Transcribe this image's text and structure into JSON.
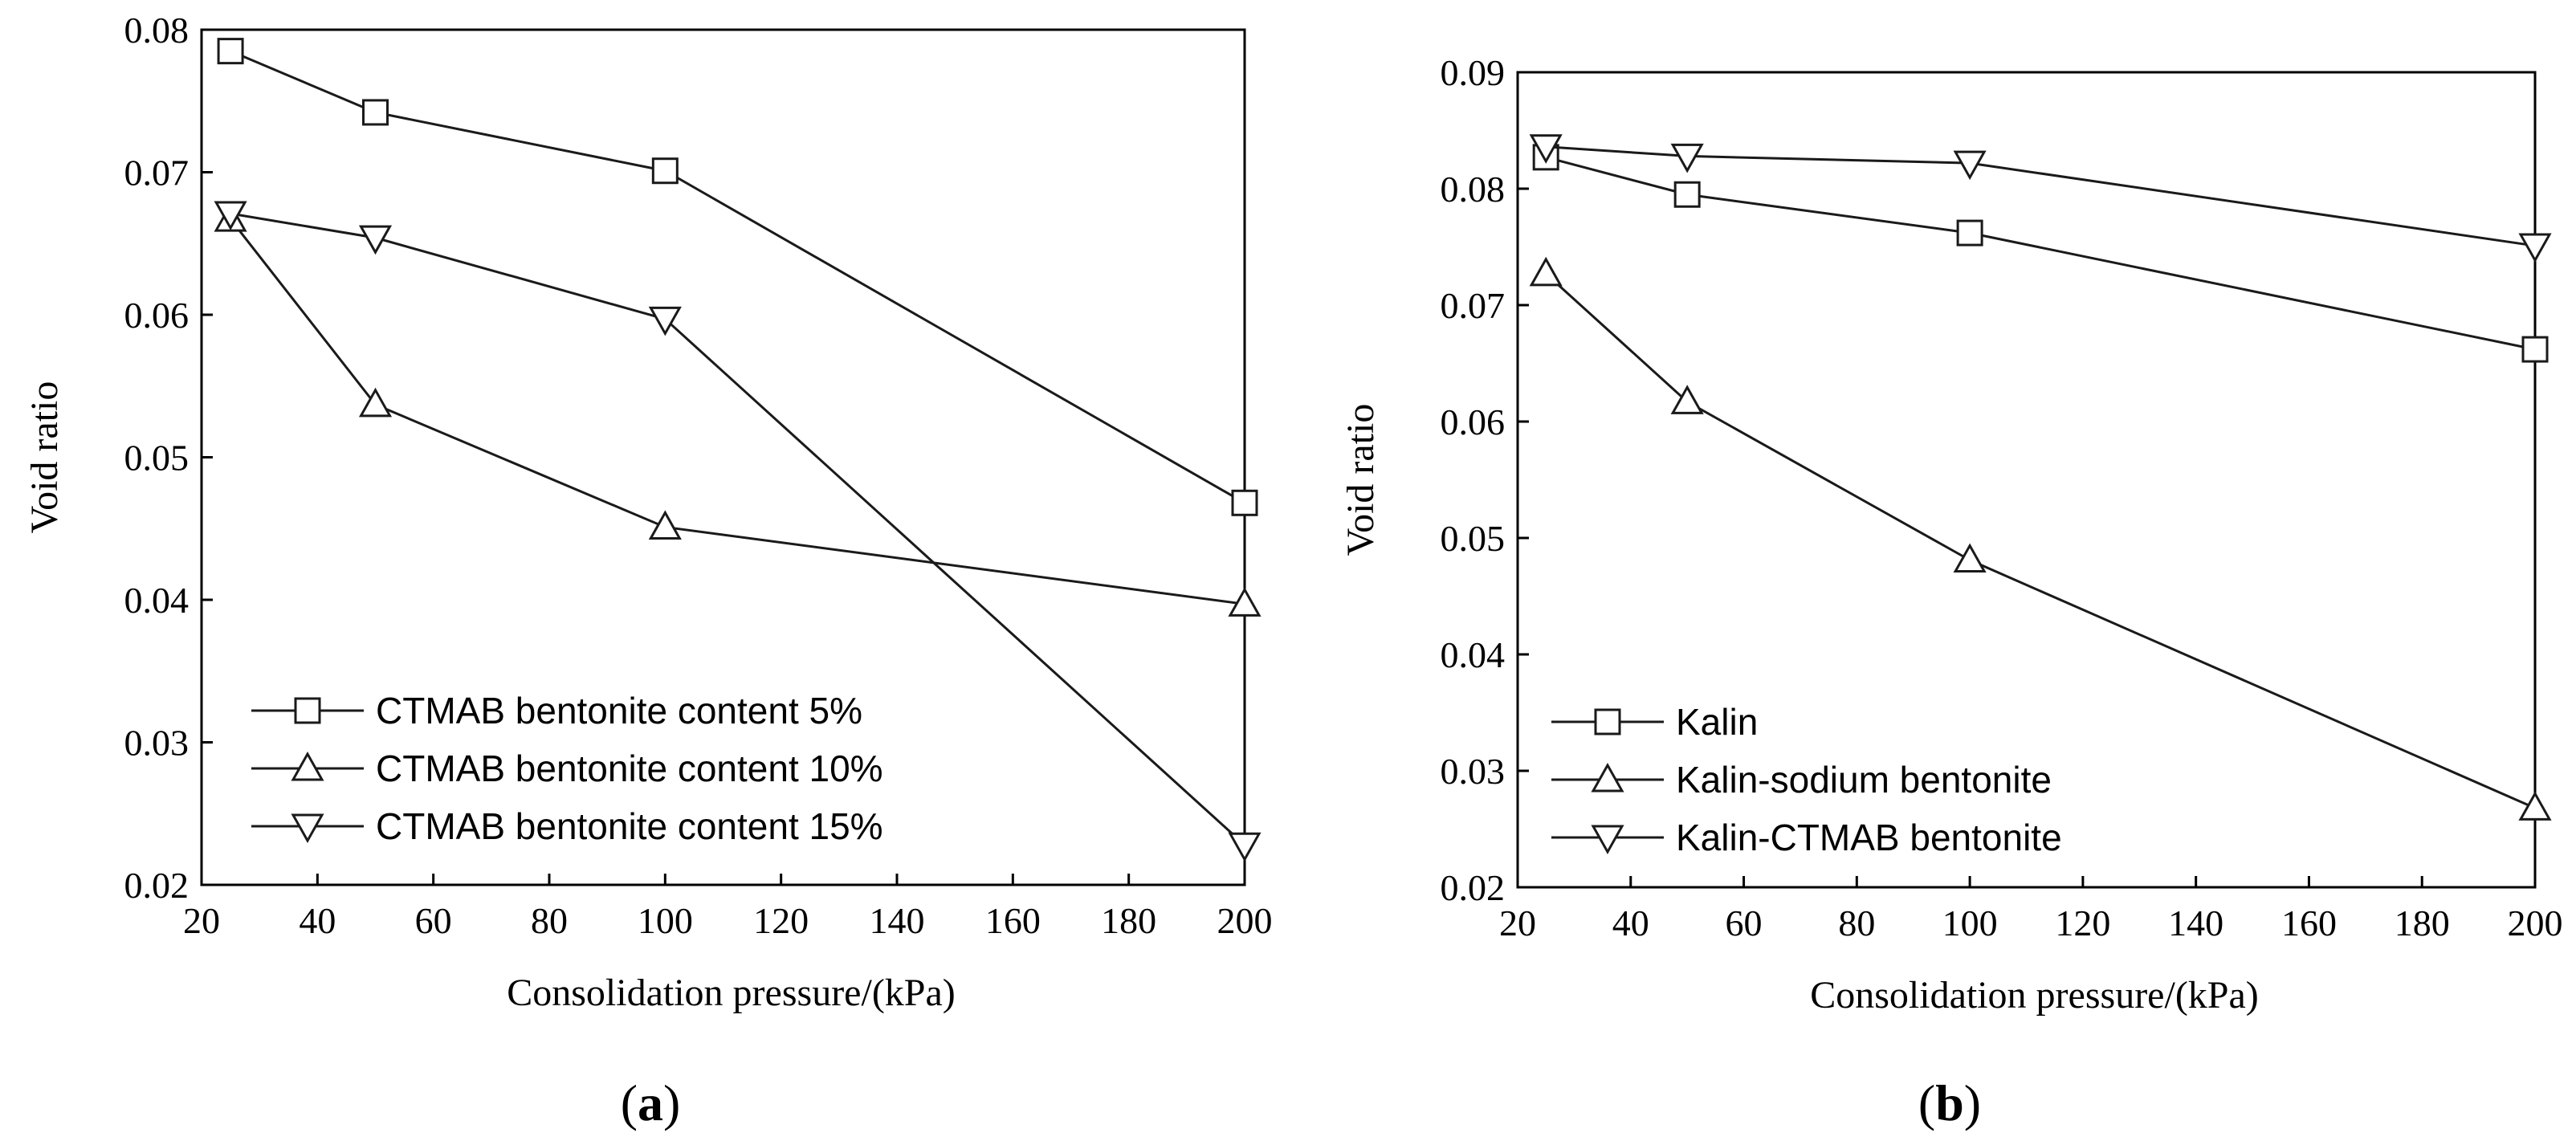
{
  "chart_data": [
    {
      "type": "line",
      "panel": "a",
      "xlabel": "Consolidation pressure/(kPa)",
      "ylabel": "Void ratio",
      "xlim": [
        20,
        200
      ],
      "ylim": [
        0.02,
        0.08
      ],
      "xticks": [
        20,
        40,
        60,
        80,
        100,
        120,
        140,
        160,
        180,
        200
      ],
      "yticks": [
        0.02,
        0.03,
        0.04,
        0.05,
        0.06,
        0.07,
        0.08
      ],
      "x": [
        25,
        50,
        100,
        200
      ],
      "legend_position": "bottom-left",
      "series": [
        {
          "name": "CTMAB bentonite content 5%",
          "marker": "square",
          "values": [
            0.0785,
            0.0742,
            0.0701,
            0.0468
          ]
        },
        {
          "name": "CTMAB bentonite content 10%",
          "marker": "triangle-up",
          "values": [
            0.0667,
            0.0537,
            0.0451,
            0.0397
          ]
        },
        {
          "name": "CTMAB bentonite content 15%",
          "marker": "triangle-down",
          "values": [
            0.0671,
            0.0654,
            0.0597,
            0.0228
          ]
        }
      ]
    },
    {
      "type": "line",
      "panel": "b",
      "xlabel": "Consolidation pressure/(kPa)",
      "ylabel": "Void ratio",
      "xlim": [
        20,
        200
      ],
      "ylim": [
        0.02,
        0.09
      ],
      "xticks": [
        20,
        40,
        60,
        80,
        100,
        120,
        140,
        160,
        180,
        200
      ],
      "yticks": [
        0.02,
        0.03,
        0.04,
        0.05,
        0.06,
        0.07,
        0.08,
        0.09
      ],
      "x": [
        25,
        50,
        100,
        200
      ],
      "legend_position": "bottom-left",
      "series": [
        {
          "name": "Kalin",
          "marker": "square",
          "values": [
            0.0827,
            0.0795,
            0.0762,
            0.0662
          ]
        },
        {
          "name": "Kalin-sodium bentonite",
          "marker": "triangle-up",
          "values": [
            0.0727,
            0.0617,
            0.0481,
            0.0268
          ]
        },
        {
          "name": "Kalin-CTMAB bentonite",
          "marker": "triangle-down",
          "values": [
            0.0836,
            0.0828,
            0.0822,
            0.0751
          ]
        }
      ]
    }
  ],
  "panel_labels": [
    "a",
    "b"
  ]
}
